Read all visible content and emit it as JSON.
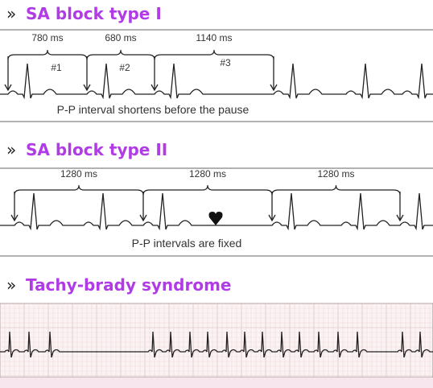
{
  "sections": [
    {
      "marker": "»",
      "title": "SA block type I",
      "intervals": [
        "780 ms",
        "680 ms",
        "1140 ms"
      ],
      "beat_labels": [
        "#1",
        "#2",
        "#3"
      ],
      "caption": "P-P interval shortens before the pause"
    },
    {
      "marker": "»",
      "title": "SA block type II",
      "intervals": [
        "1280 ms",
        "1280 ms",
        "1280 ms"
      ],
      "caption": "P-P intervals are fixed"
    },
    {
      "marker": "»",
      "title": "Tachy-brady syndrome"
    }
  ]
}
